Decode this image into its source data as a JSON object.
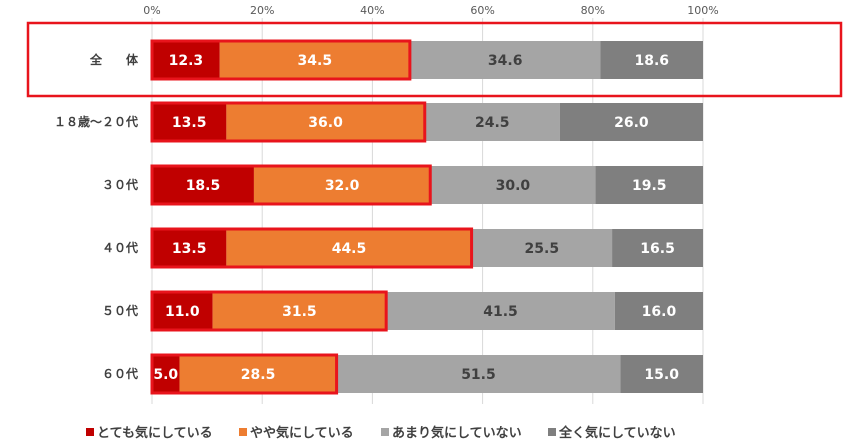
{
  "chart_data": {
    "type": "bar",
    "orientation": "horizontal",
    "stacked": true,
    "title": "",
    "xlabel": "",
    "ylabel": "",
    "xlim": [
      0,
      100
    ],
    "x_ticks": [
      "0%",
      "20%",
      "40%",
      "60%",
      "80%",
      "100%"
    ],
    "grid": true,
    "legend_position": "bottom",
    "categories": [
      "全　　体",
      "１８歳〜２０代",
      "３０代",
      "４０代",
      "５０代",
      "６０代"
    ],
    "series": [
      {
        "name": "とても気にしている",
        "color": "#C00000",
        "label_color": "#ffffff",
        "values": [
          12.3,
          13.5,
          18.5,
          13.5,
          11.0,
          5.0
        ]
      },
      {
        "name": "やや気にしている",
        "color": "#ED7D31",
        "label_color": "#ffffff",
        "values": [
          34.5,
          36.0,
          32.0,
          44.5,
          31.5,
          28.5
        ]
      },
      {
        "name": "あまり気にしていない",
        "color": "#A5A5A5",
        "label_color": "#404040",
        "values": [
          34.6,
          24.5,
          30.0,
          25.5,
          41.5,
          51.5
        ]
      },
      {
        "name": "全く気にしていない",
        "color": "#7F7F7F",
        "label_color": "#ffffff",
        "values": [
          18.6,
          26.0,
          19.5,
          16.5,
          16.0,
          15.0
        ]
      }
    ],
    "data_labels": [
      [
        "12.3",
        "34.5",
        "34.6",
        "18.6"
      ],
      [
        "13.5",
        "36.0",
        "24.5",
        "26.0"
      ],
      [
        "18.5",
        "32.0",
        "30.0",
        "19.5"
      ],
      [
        "13.5",
        "44.5",
        "25.5",
        "16.5"
      ],
      [
        "11.0",
        "31.5",
        "41.5",
        "16.0"
      ],
      [
        "5.0",
        "28.5",
        "51.5",
        "15.0"
      ]
    ],
    "highlight_color": "#E8141C"
  }
}
